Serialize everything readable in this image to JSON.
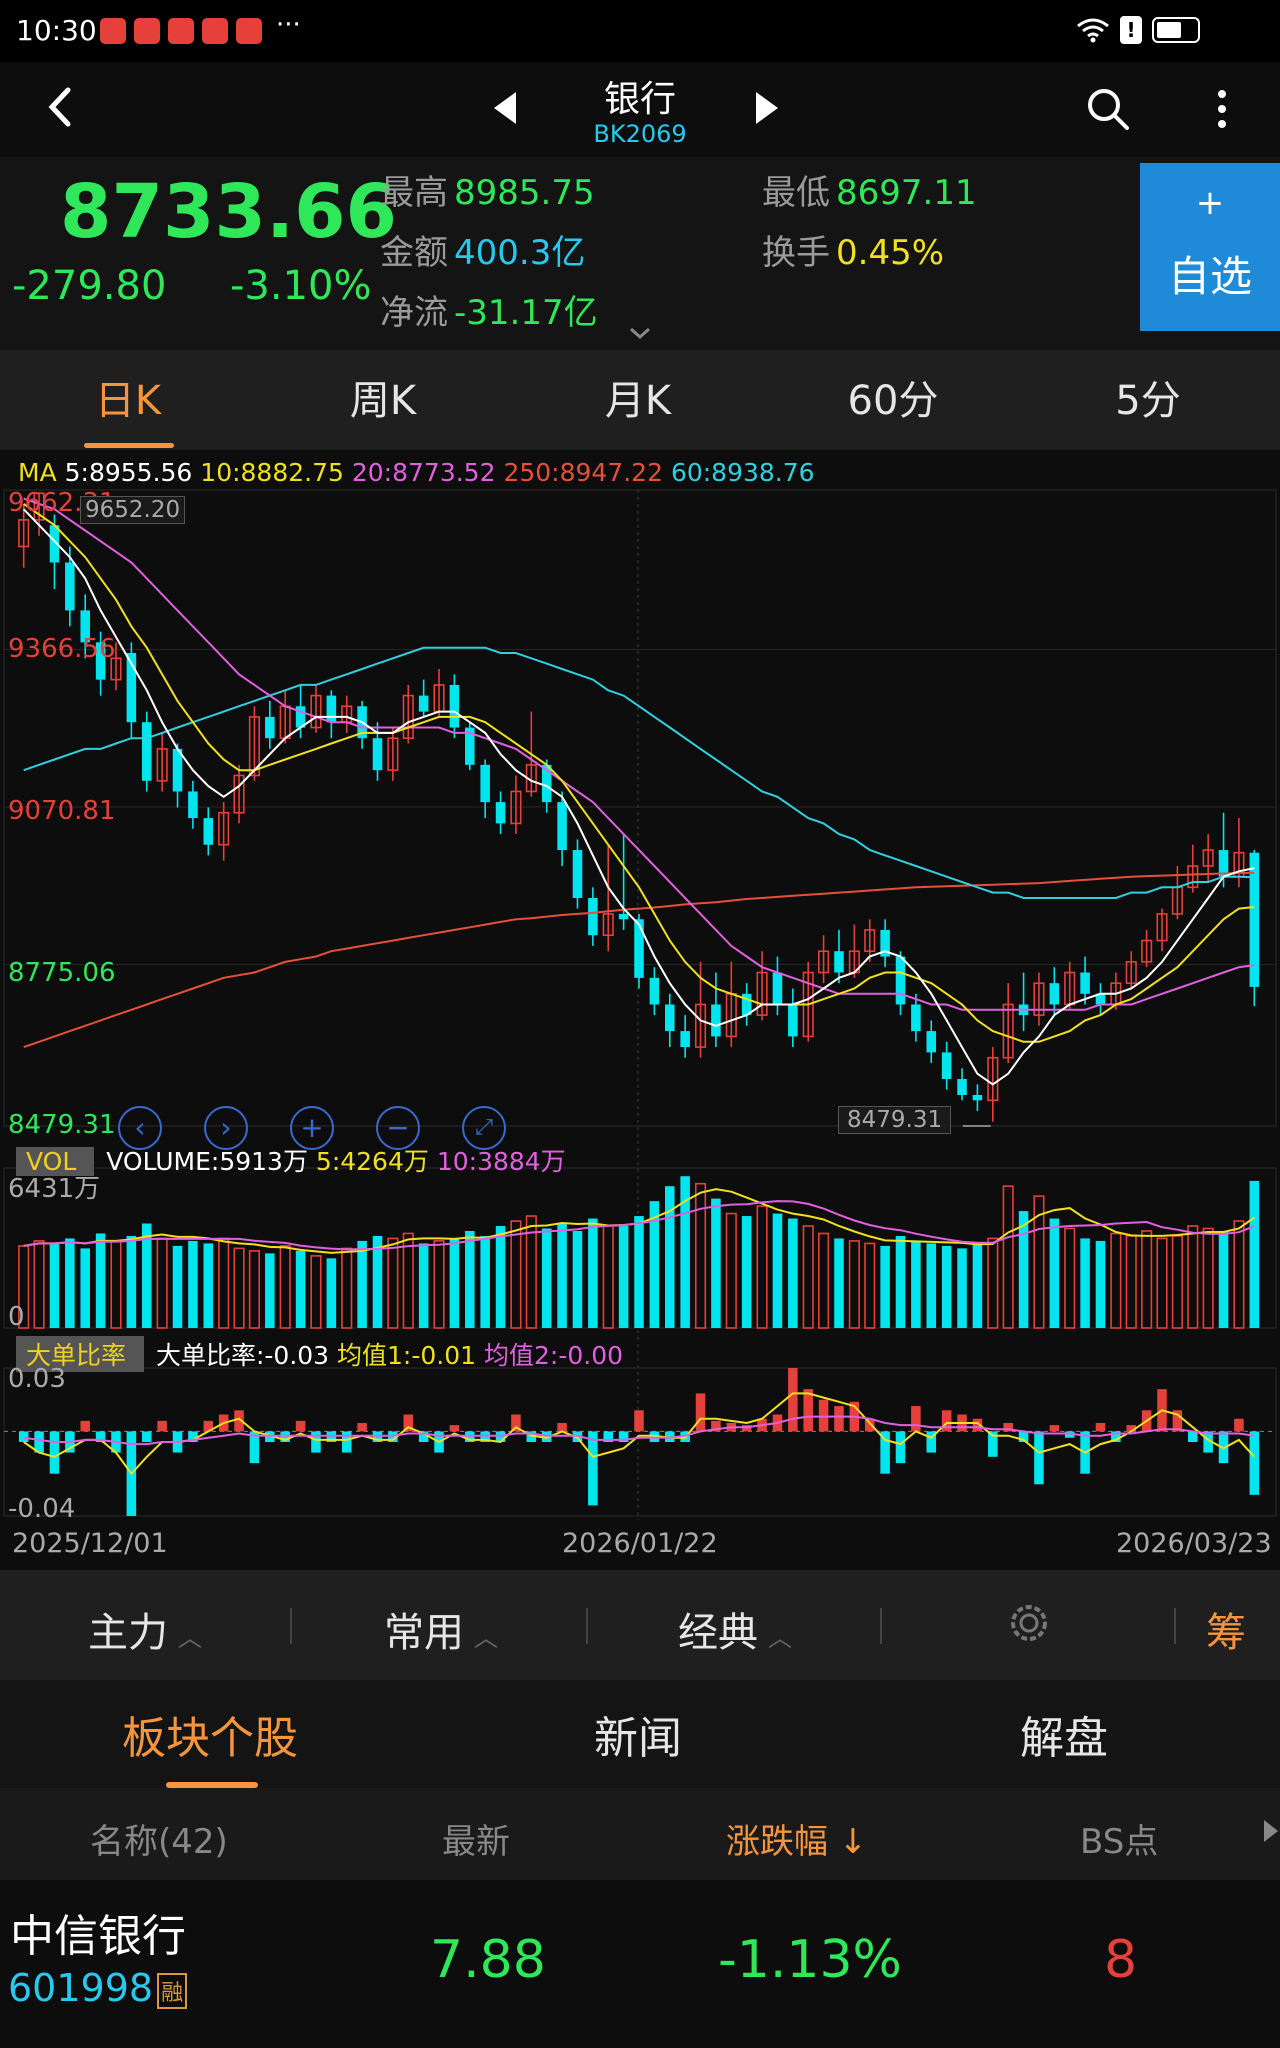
{
  "status": {
    "time": "10:30",
    "more": "···"
  },
  "header": {
    "title": "银行",
    "code": "BK2069"
  },
  "quote": {
    "price": "8733.66",
    "change": "-279.80",
    "change_pct": "-3.10%",
    "high_label": "最高",
    "high": "8985.75",
    "low_label": "最低",
    "low": "8697.11",
    "amount_label": "金额",
    "amount": "400.3亿",
    "turnover_label": "换手",
    "turnover": "0.45%",
    "netflow_label": "净流",
    "netflow": "-31.17亿",
    "add_plus": "+",
    "add_label": "自选"
  },
  "ktabs": [
    "日K",
    "周K",
    "月K",
    "60分",
    "5分"
  ],
  "ma_legend": {
    "ma": "MA",
    "ma5": "5:8955.56",
    "ma10": "10:8882.75",
    "ma20": "20:8773.52",
    "ma250": "250:8947.22",
    "ma60": "60:8938.76"
  },
  "price_axis": [
    "9662.31",
    "9366.56",
    "9070.81",
    "8775.06",
    "8479.31"
  ],
  "high_marker": "9652.20",
  "low_marker": "8479.31",
  "volume": {
    "tag": "VOL",
    "label": "VOLUME:5913万",
    "ma5": "5:4264万",
    "ma10": "10:3884万",
    "axis_max": "6431万",
    "axis_min": "0"
  },
  "bigorder": {
    "tag": "大单比率",
    "label": "大单比率:-0.03",
    "avg1": "均值1:-0.01",
    "avg2": "均值2:-0.00",
    "axis_max": "0.03",
    "axis_min": "-0.04"
  },
  "dates": [
    "2025/12/01",
    "2026/01/22",
    "2026/03/23"
  ],
  "indicator_tabs": [
    "主力",
    "常用",
    "经典"
  ],
  "indicator_extra": "筹",
  "section_tabs": [
    "板块个股",
    "新闻",
    "解盘"
  ],
  "table": {
    "headers": [
      "名称(42)",
      "最新",
      "涨跌幅 ↓",
      "BS点"
    ],
    "rows": [
      {
        "name": "中信银行",
        "code": "601998",
        "badge": "融",
        "last": "7.88",
        "pct": "-1.13%",
        "bs": "8"
      }
    ]
  },
  "colors": {
    "up": "#e5403a",
    "down": "#00e5ee",
    "ma5": "#ffffff",
    "ma10": "#f0e020",
    "ma20": "#e060e0",
    "ma250": "#e5503a",
    "ma60": "#30d0e0",
    "accent": "#f5953d"
  },
  "chart_data": {
    "type": "candlestick",
    "x_start": "2025/12/01",
    "x_end": "2026/03/23",
    "ylim": [
      8479.31,
      9662.31
    ],
    "candles": [
      [
        9560,
        9610,
        9520,
        9640
      ],
      [
        9610,
        9660,
        9580,
        9662
      ],
      [
        9600,
        9530,
        9480,
        9620
      ],
      [
        9530,
        9440,
        9410,
        9560
      ],
      [
        9440,
        9380,
        9350,
        9470
      ],
      [
        9380,
        9310,
        9280,
        9400
      ],
      [
        9310,
        9350,
        9290,
        9380
      ],
      [
        9360,
        9230,
        9200,
        9380
      ],
      [
        9230,
        9120,
        9100,
        9250
      ],
      [
        9120,
        9180,
        9100,
        9210
      ],
      [
        9180,
        9100,
        9070,
        9190
      ],
      [
        9100,
        9050,
        9030,
        9120
      ],
      [
        9050,
        9000,
        8980,
        9070
      ],
      [
        9000,
        9060,
        8970,
        9080
      ],
      [
        9060,
        9130,
        9040,
        9150
      ],
      [
        9130,
        9240,
        9120,
        9260
      ],
      [
        9240,
        9200,
        9180,
        9270
      ],
      [
        9200,
        9260,
        9190,
        9290
      ],
      [
        9260,
        9220,
        9200,
        9300
      ],
      [
        9220,
        9280,
        9210,
        9300
      ],
      [
        9280,
        9230,
        9200,
        9290
      ],
      [
        9230,
        9260,
        9210,
        9280
      ],
      [
        9260,
        9200,
        9180,
        9270
      ],
      [
        9200,
        9140,
        9120,
        9230
      ],
      [
        9140,
        9200,
        9120,
        9220
      ],
      [
        9200,
        9280,
        9190,
        9300
      ],
      [
        9280,
        9250,
        9240,
        9310
      ],
      [
        9250,
        9300,
        9240,
        9330
      ],
      [
        9300,
        9220,
        9200,
        9320
      ],
      [
        9220,
        9150,
        9140,
        9230
      ],
      [
        9150,
        9080,
        9050,
        9160
      ],
      [
        9080,
        9040,
        9020,
        9100
      ],
      [
        9040,
        9100,
        9020,
        9130
      ],
      [
        9100,
        9150,
        9090,
        9250
      ],
      [
        9150,
        9080,
        9060,
        9160
      ],
      [
        9080,
        8990,
        8960,
        9100
      ],
      [
        8990,
        8900,
        8880,
        9010
      ],
      [
        8900,
        8830,
        8810,
        8920
      ],
      [
        8830,
        8870,
        8800,
        9000
      ],
      [
        8870,
        8860,
        8840,
        9020
      ],
      [
        8860,
        8750,
        8730,
        8870
      ],
      [
        8750,
        8700,
        8680,
        8770
      ],
      [
        8700,
        8650,
        8620,
        8720
      ],
      [
        8650,
        8620,
        8600,
        8680
      ],
      [
        8620,
        8700,
        8600,
        8780
      ],
      [
        8700,
        8640,
        8620,
        8760
      ],
      [
        8640,
        8720,
        8620,
        8780
      ],
      [
        8720,
        8680,
        8660,
        8740
      ],
      [
        8680,
        8760,
        8670,
        8800
      ],
      [
        8760,
        8700,
        8680,
        8790
      ],
      [
        8700,
        8640,
        8620,
        8730
      ],
      [
        8640,
        8760,
        8630,
        8780
      ],
      [
        8760,
        8800,
        8740,
        8830
      ],
      [
        8800,
        8760,
        8740,
        8840
      ],
      [
        8760,
        8800,
        8750,
        8850
      ],
      [
        8800,
        8840,
        8780,
        8860
      ],
      [
        8840,
        8790,
        8770,
        8860
      ],
      [
        8790,
        8700,
        8680,
        8800
      ],
      [
        8700,
        8650,
        8630,
        8720
      ],
      [
        8650,
        8610,
        8590,
        8670
      ],
      [
        8610,
        8560,
        8540,
        8630
      ],
      [
        8560,
        8530,
        8520,
        8580
      ],
      [
        8530,
        8520,
        8500,
        8550
      ],
      [
        8520,
        8600,
        8480,
        8620
      ],
      [
        8600,
        8700,
        8590,
        8740
      ],
      [
        8700,
        8680,
        8650,
        8760
      ],
      [
        8680,
        8740,
        8660,
        8760
      ],
      [
        8740,
        8700,
        8680,
        8770
      ],
      [
        8700,
        8760,
        8690,
        8780
      ],
      [
        8760,
        8720,
        8700,
        8790
      ],
      [
        8720,
        8700,
        8680,
        8740
      ],
      [
        8700,
        8740,
        8690,
        8760
      ],
      [
        8740,
        8780,
        8730,
        8800
      ],
      [
        8780,
        8820,
        8770,
        8840
      ],
      [
        8820,
        8870,
        8800,
        8880
      ],
      [
        8870,
        8920,
        8860,
        8960
      ],
      [
        8920,
        8960,
        8910,
        9000
      ],
      [
        8960,
        8990,
        8930,
        9020
      ],
      [
        8990,
        8940,
        8920,
        9060
      ],
      [
        8940,
        8985,
        8920,
        9050
      ],
      [
        8985,
        8733,
        8697,
        8990
      ]
    ],
    "volume": [
      3300,
      3500,
      3400,
      3600,
      3200,
      3800,
      3500,
      3700,
      4200,
      3600,
      3300,
      3500,
      3400,
      3600,
      3200,
      3100,
      3000,
      3300,
      3100,
      2900,
      2800,
      3200,
      3500,
      3700,
      3600,
      3800,
      3400,
      3500,
      3600,
      3900,
      3700,
      4100,
      4300,
      4500,
      4000,
      4200,
      3900,
      4400,
      4100,
      4100,
      4500,
      5100,
      5700,
      6100,
      5800,
      5200,
      4600,
      4500,
      4900,
      4600,
      4400,
      4100,
      3800,
      3600,
      3500,
      3400,
      3300,
      3700,
      3500,
      3400,
      3300,
      3200,
      3400,
      3600,
      5700,
      4700,
      5300,
      4400,
      4000,
      3600,
      3500,
      3800,
      3700,
      3900,
      3600,
      3700,
      4100,
      4000,
      3900,
      4300,
      5913
    ],
    "ma5_line": [
      9630,
      9600,
      9570,
      9540,
      9500,
      9440,
      9390,
      9340,
      9290,
      9230,
      9180,
      9140,
      9110,
      9090,
      9110,
      9140,
      9170,
      9200,
      9220,
      9240,
      9240,
      9240,
      9230,
      9210,
      9210,
      9230,
      9240,
      9250,
      9250,
      9230,
      9210,
      9170,
      9140,
      9120,
      9110,
      9090,
      9040,
      8980,
      8920,
      8880,
      8850,
      8790,
      8740,
      8700,
      8670,
      8660,
      8670,
      8680,
      8700,
      8700,
      8700,
      8710,
      8730,
      8750,
      8760,
      8790,
      8800,
      8790,
      8760,
      8720,
      8670,
      8620,
      8570,
      8550,
      8570,
      8610,
      8640,
      8680,
      8700,
      8710,
      8720,
      8720,
      8730,
      8750,
      8780,
      8820,
      8860,
      8900,
      8940,
      8950,
      8956
    ],
    "ma10_line": [
      9640,
      9620,
      9600,
      9570,
      9540,
      9500,
      9460,
      9410,
      9370,
      9320,
      9270,
      9230,
      9190,
      9160,
      9140,
      9140,
      9150,
      9160,
      9170,
      9180,
      9190,
      9200,
      9210,
      9210,
      9210,
      9220,
      9230,
      9240,
      9240,
      9240,
      9230,
      9210,
      9190,
      9170,
      9150,
      9120,
      9080,
      9040,
      9000,
      8960,
      8920,
      8870,
      8820,
      8780,
      8750,
      8730,
      8720,
      8710,
      8700,
      8700,
      8700,
      8700,
      8710,
      8720,
      8730,
      8750,
      8760,
      8760,
      8750,
      8740,
      8720,
      8700,
      8670,
      8650,
      8640,
      8630,
      8630,
      8640,
      8650,
      8670,
      8680,
      8700,
      8710,
      8730,
      8750,
      8770,
      8800,
      8830,
      8860,
      8880,
      8883
    ],
    "ma20_line": [
      9650,
      9640,
      9630,
      9610,
      9590,
      9570,
      9550,
      9530,
      9500,
      9470,
      9440,
      9410,
      9380,
      9350,
      9320,
      9300,
      9280,
      9260,
      9250,
      9240,
      9230,
      9230,
      9220,
      9220,
      9220,
      9220,
      9220,
      9220,
      9210,
      9210,
      9200,
      9190,
      9180,
      9160,
      9140,
      9120,
      9100,
      9080,
      9050,
      9020,
      8990,
      8960,
      8930,
      8900,
      8870,
      8840,
      8810,
      8790,
      8770,
      8760,
      8750,
      8740,
      8730,
      8720,
      8720,
      8720,
      8720,
      8720,
      8710,
      8700,
      8700,
      8690,
      8690,
      8690,
      8690,
      8690,
      8690,
      8690,
      8690,
      8690,
      8700,
      8700,
      8700,
      8710,
      8720,
      8730,
      8740,
      8750,
      8760,
      8770,
      8774
    ],
    "ma60_line": [
      9140,
      9150,
      9160,
      9170,
      9180,
      9180,
      9190,
      9200,
      9200,
      9210,
      9220,
      9230,
      9240,
      9250,
      9260,
      9270,
      9280,
      9290,
      9300,
      9300,
      9310,
      9320,
      9330,
      9340,
      9350,
      9360,
      9370,
      9370,
      9370,
      9370,
      9370,
      9360,
      9360,
      9350,
      9340,
      9330,
      9320,
      9310,
      9290,
      9280,
      9260,
      9240,
      9220,
      9200,
      9180,
      9160,
      9140,
      9120,
      9100,
      9090,
      9070,
      9050,
      9040,
      9020,
      9010,
      8990,
      8980,
      8970,
      8960,
      8950,
      8940,
      8930,
      8920,
      8910,
      8910,
      8900,
      8900,
      8900,
      8900,
      8900,
      8900,
      8900,
      8910,
      8910,
      8920,
      8920,
      8930,
      8930,
      8940,
      8940,
      8939
    ],
    "ma250_line": [
      8620,
      8630,
      8640,
      8650,
      8660,
      8670,
      8680,
      8690,
      8700,
      8710,
      8720,
      8730,
      8740,
      8750,
      8755,
      8760,
      8770,
      8780,
      8785,
      8790,
      8800,
      8805,
      8810,
      8815,
      8820,
      8825,
      8830,
      8835,
      8840,
      8845,
      8850,
      8855,
      8860,
      8862,
      8865,
      8868,
      8870,
      8872,
      8875,
      8878,
      8880,
      8882,
      8885,
      8888,
      8890,
      8892,
      8895,
      8898,
      8900,
      8902,
      8904,
      8906,
      8908,
      8910,
      8912,
      8914,
      8916,
      8918,
      8920,
      8921,
      8922,
      8923,
      8924,
      8925,
      8926,
      8927,
      8928,
      8930,
      8932,
      8934,
      8936,
      8938,
      8940,
      8941,
      8942,
      8943,
      8944,
      8945,
      8946,
      8947,
      8947
    ],
    "big_order_ratio": [
      -0.005,
      -0.01,
      -0.02,
      -0.01,
      0.005,
      -0.005,
      -0.01,
      -0.04,
      -0.005,
      0.005,
      -0.01,
      -0.005,
      0.005,
      0.008,
      0.01,
      -0.015,
      -0.005,
      -0.005,
      0.005,
      -0.01,
      -0.005,
      -0.01,
      0.004,
      -0.005,
      -0.005,
      0.008,
      -0.005,
      -0.01,
      0.003,
      -0.005,
      -0.005,
      -0.005,
      0.008,
      -0.005,
      -0.005,
      0.004,
      -0.005,
      -0.035,
      -0.005,
      -0.005,
      0.01,
      -0.005,
      -0.005,
      -0.005,
      0.018,
      0.005,
      0.004,
      0.003,
      0.006,
      0.008,
      0.03,
      0.02,
      0.015,
      0.012,
      0.014,
      0.006,
      -0.02,
      -0.015,
      0.012,
      -0.01,
      0.01,
      0.008,
      0.006,
      -0.012,
      0.004,
      -0.005,
      -0.025,
      0.003,
      -0.003,
      -0.02,
      0.004,
      -0.005,
      0.003,
      0.01,
      0.02,
      0.01,
      -0.005,
      -0.01,
      -0.015,
      0.006,
      -0.03
    ],
    "big_order_avg1": [
      -0.005,
      -0.01,
      -0.012,
      -0.008,
      -0.004,
      -0.004,
      -0.01,
      -0.02,
      -0.012,
      -0.005,
      -0.005,
      -0.004,
      0.0,
      0.004,
      0.006,
      0.0,
      -0.002,
      -0.004,
      -0.001,
      -0.004,
      -0.004,
      -0.004,
      -0.002,
      -0.004,
      -0.004,
      0.002,
      -0.001,
      -0.005,
      -0.001,
      -0.004,
      -0.004,
      -0.005,
      0.002,
      -0.002,
      -0.003,
      0.0,
      -0.003,
      -0.012,
      -0.01,
      -0.008,
      -0.002,
      -0.002,
      -0.003,
      -0.003,
      0.006,
      0.006,
      0.005,
      0.004,
      0.006,
      0.012,
      0.018,
      0.018,
      0.016,
      0.014,
      0.012,
      0.004,
      -0.004,
      -0.006,
      0.0,
      -0.003,
      0.004,
      0.004,
      0.004,
      -0.002,
      -0.002,
      -0.004,
      -0.01,
      -0.008,
      -0.006,
      -0.01,
      -0.006,
      -0.004,
      0.0,
      0.005,
      0.01,
      0.008,
      0.002,
      -0.004,
      -0.008,
      -0.004,
      -0.012
    ],
    "big_order_avg2": [
      -0.003,
      -0.004,
      -0.005,
      -0.005,
      -0.004,
      -0.004,
      -0.005,
      -0.006,
      -0.006,
      -0.005,
      -0.005,
      -0.004,
      -0.003,
      -0.002,
      -0.001,
      -0.002,
      -0.002,
      -0.002,
      -0.002,
      -0.002,
      -0.002,
      -0.002,
      -0.002,
      -0.002,
      -0.002,
      -0.001,
      -0.001,
      -0.002,
      -0.002,
      -0.002,
      -0.002,
      -0.002,
      -0.001,
      -0.001,
      -0.002,
      -0.002,
      -0.002,
      -0.004,
      -0.004,
      -0.004,
      -0.003,
      -0.003,
      -0.003,
      -0.002,
      0.0,
      0.001,
      0.002,
      0.002,
      0.003,
      0.004,
      0.006,
      0.007,
      0.007,
      0.007,
      0.007,
      0.006,
      0.004,
      0.003,
      0.003,
      0.002,
      0.002,
      0.002,
      0.002,
      0.001,
      0.001,
      0.0,
      -0.001,
      -0.001,
      -0.001,
      -0.002,
      -0.002,
      -0.001,
      -0.001,
      0.0,
      0.001,
      0.001,
      0.0,
      -0.001,
      -0.001,
      -0.001,
      -0.002
    ]
  }
}
